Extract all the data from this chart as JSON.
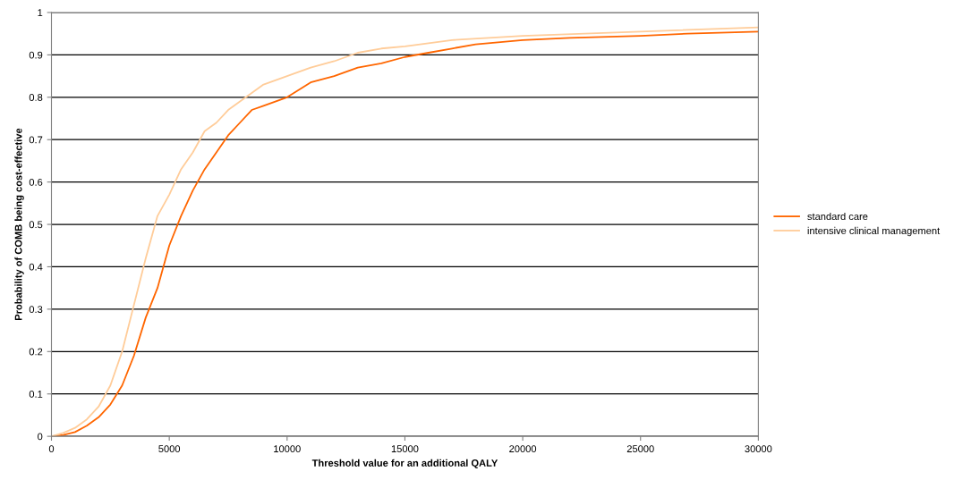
{
  "chart_data": {
    "type": "line",
    "xlabel": "Threshold value for an additional QALY",
    "ylabel": "Probability of COMB being cost-effective",
    "xlim": [
      0,
      30000
    ],
    "xticks": [
      0,
      5000,
      10000,
      15000,
      20000,
      25000,
      30000
    ],
    "ylim": [
      0,
      1
    ],
    "yticks": [
      0,
      0.1,
      0.2,
      0.3,
      0.4,
      0.5,
      0.6,
      0.7,
      0.8,
      0.9,
      1
    ],
    "grid": "y",
    "legend": "right",
    "line_style": "solid",
    "series": [
      {
        "name": "standard care",
        "color": "#ff6600",
        "x": [
          0,
          500,
          1000,
          1500,
          2000,
          2500,
          3000,
          3500,
          4000,
          4500,
          5000,
          5500,
          6000,
          6500,
          7000,
          7500,
          8000,
          8500,
          9000,
          10000,
          11000,
          12000,
          13000,
          14000,
          15000,
          16000,
          17000,
          18000,
          20000,
          22000,
          25000,
          27000,
          30000
        ],
        "values": [
          0,
          0.003,
          0.01,
          0.025,
          0.045,
          0.075,
          0.12,
          0.19,
          0.28,
          0.35,
          0.45,
          0.52,
          0.58,
          0.63,
          0.67,
          0.71,
          0.74,
          0.77,
          0.78,
          0.8,
          0.835,
          0.85,
          0.87,
          0.88,
          0.895,
          0.905,
          0.915,
          0.925,
          0.935,
          0.94,
          0.945,
          0.95,
          0.955
        ]
      },
      {
        "name": "intensive clinical management",
        "color": "#ffcc99",
        "x": [
          0,
          500,
          1000,
          1500,
          2000,
          2500,
          3000,
          3500,
          4000,
          4500,
          5000,
          5500,
          6000,
          6500,
          7000,
          7500,
          8000,
          9000,
          10000,
          11000,
          12000,
          13000,
          14000,
          15000,
          17000,
          20000,
          25000,
          30000
        ],
        "values": [
          0,
          0.008,
          0.02,
          0.04,
          0.07,
          0.12,
          0.2,
          0.31,
          0.42,
          0.52,
          0.57,
          0.63,
          0.67,
          0.72,
          0.74,
          0.77,
          0.79,
          0.83,
          0.85,
          0.87,
          0.885,
          0.905,
          0.915,
          0.92,
          0.935,
          0.945,
          0.955,
          0.965
        ]
      }
    ]
  }
}
